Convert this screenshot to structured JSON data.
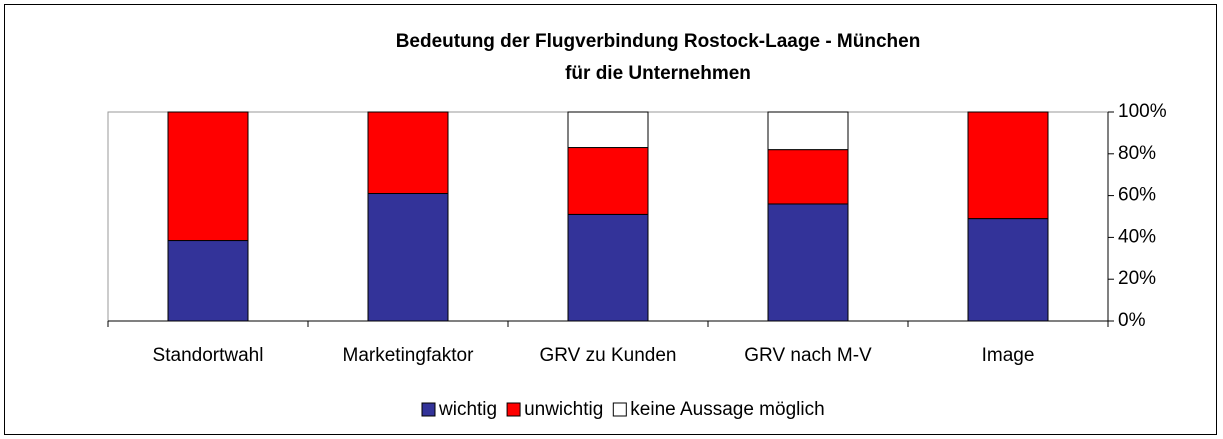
{
  "chart_data": {
    "type": "stacked_bar",
    "title": "Bedeutung der Flugverbindung Rostock-Laage - München",
    "subtitle": "für die Unternehmen",
    "categories": [
      "Standortwahl",
      "Marketingfaktor",
      "GRV zu Kunden",
      "GRV nach M-V",
      "Image"
    ],
    "series": [
      {
        "name": "wichtig",
        "color": "#333399",
        "values": [
          38.5,
          61,
          51,
          56,
          49
        ]
      },
      {
        "name": "unwichtig",
        "color": "#ff0000",
        "values": [
          61.5,
          39,
          32,
          26,
          51
        ]
      },
      {
        "name": "keine Aussage möglich",
        "color": "#ffffff",
        "values": [
          0,
          0,
          17,
          18,
          0
        ]
      }
    ],
    "ylim": [
      0,
      100
    ],
    "yticks": [
      {
        "value": 0,
        "label": "0%"
      },
      {
        "value": 20,
        "label": "20%"
      },
      {
        "value": 40,
        "label": "40%"
      },
      {
        "value": 60,
        "label": "60%"
      },
      {
        "value": 80,
        "label": "80%"
      },
      {
        "value": 100,
        "label": "100%"
      }
    ],
    "legend": "bottom"
  }
}
